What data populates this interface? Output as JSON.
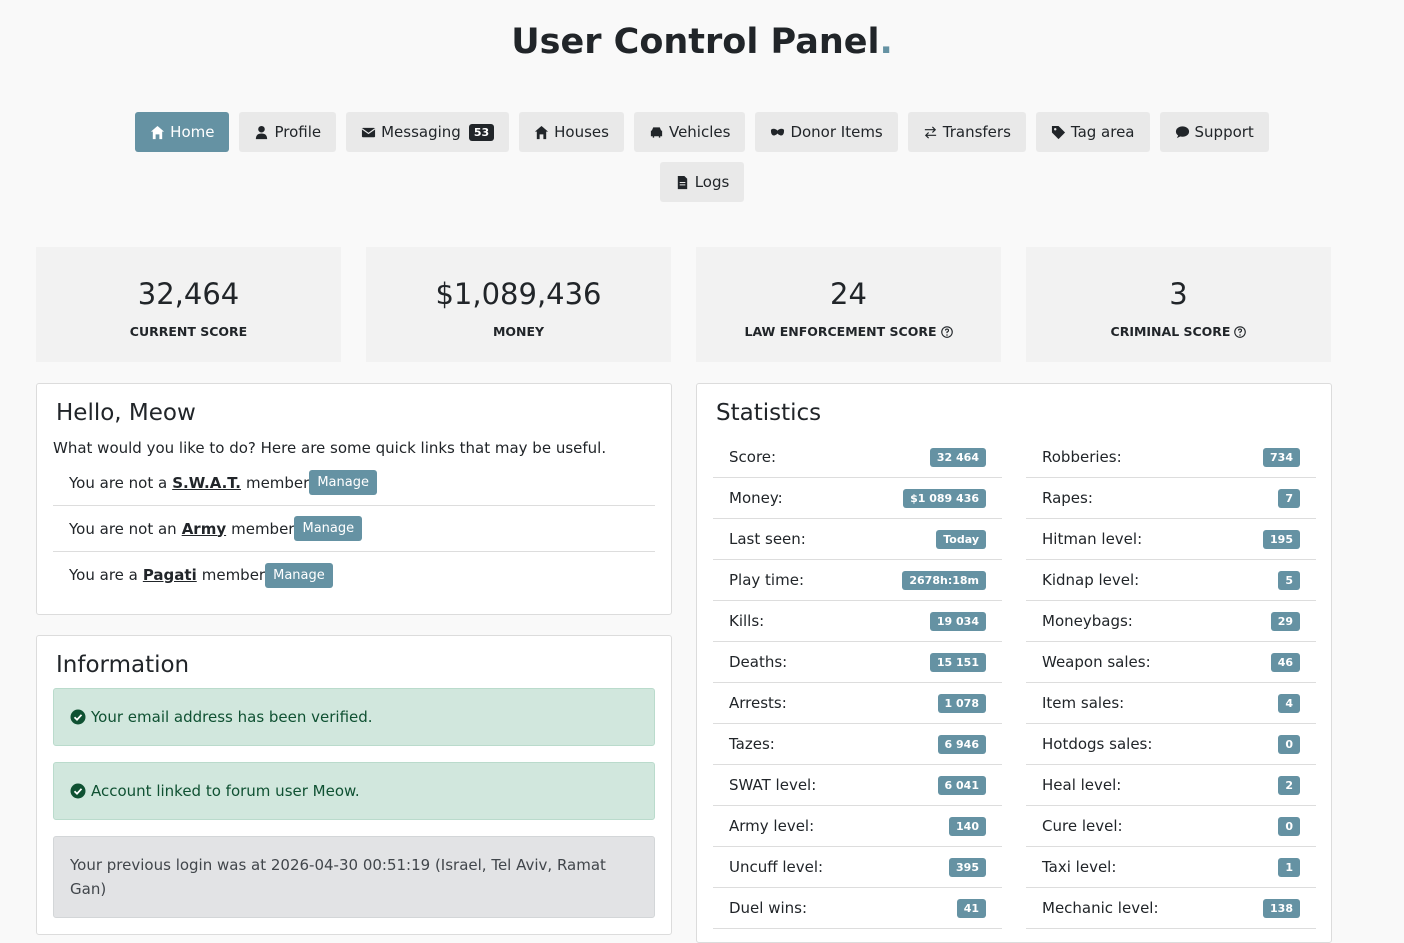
{
  "header": {
    "title": "User Control Panel",
    "dot": "."
  },
  "nav": [
    [
      {
        "icon": "home",
        "label": "Home",
        "active": true
      },
      {
        "icon": "user",
        "label": "Profile"
      },
      {
        "icon": "mail",
        "label": "Messaging",
        "badge": "53"
      },
      {
        "icon": "home",
        "label": "Houses"
      },
      {
        "icon": "car",
        "label": "Vehicles"
      },
      {
        "icon": "mask",
        "label": "Donor Items"
      },
      {
        "icon": "swap",
        "label": "Transfers"
      },
      {
        "icon": "tag",
        "label": "Tag area"
      },
      {
        "icon": "chat",
        "label": "Support"
      }
    ],
    [
      {
        "icon": "file",
        "label": "Logs"
      }
    ]
  ],
  "cards": [
    {
      "value": "32,464",
      "label": "CURRENT SCORE"
    },
    {
      "value": "$1,089,436",
      "label": "MONEY"
    },
    {
      "value": "24",
      "label": "LAW ENFORCEMENT SCORE",
      "help": true
    },
    {
      "value": "3",
      "label": "CRIMINAL SCORE",
      "help": true
    }
  ],
  "hello": {
    "title": "Hello, Meow",
    "intro": "What would you like to do? Here are some quick links that may be useful.",
    "rows": [
      {
        "prefix": "You are not a",
        "link": "S.W.A.T.",
        "suffix": "member",
        "button": "Manage"
      },
      {
        "prefix": "You are not an",
        "link": "Army",
        "suffix": "member",
        "button": "Manage"
      },
      {
        "prefix": "You are a",
        "link": "Pagati",
        "suffix": "member",
        "button": "Manage"
      }
    ]
  },
  "information": {
    "title": "Information",
    "alerts": [
      {
        "kind": "success",
        "text": "Your email address has been verified."
      },
      {
        "kind": "success",
        "text": "Account linked to forum user Meow."
      },
      {
        "kind": "secondary",
        "text": "Your previous login was at 2026-04-30 00:51:19 (Israel, Tel Aviv, Ramat Gan)"
      }
    ]
  },
  "statistics": {
    "title": "Statistics",
    "columns": [
      [
        {
          "label": "Score:",
          "value": "32 464"
        },
        {
          "label": "Money:",
          "value": "$1 089 436"
        },
        {
          "label": "Last seen:",
          "value": "Today"
        },
        {
          "label": "Play time:",
          "value": "2678h:18m"
        },
        {
          "label": "Kills:",
          "value": "19 034"
        },
        {
          "label": "Deaths:",
          "value": "15 151"
        },
        {
          "label": "Arrests:",
          "value": "1 078"
        },
        {
          "label": "Tazes:",
          "value": "6 946"
        },
        {
          "label": "SWAT level:",
          "value": "6 041"
        },
        {
          "label": "Army level:",
          "value": "140"
        },
        {
          "label": "Uncuff level:",
          "value": "395"
        },
        {
          "label": "Duel wins:",
          "value": "41"
        }
      ],
      [
        {
          "label": "Robberies:",
          "value": "734"
        },
        {
          "label": "Rapes:",
          "value": "7"
        },
        {
          "label": "Hitman level:",
          "value": "195"
        },
        {
          "label": "Kidnap level:",
          "value": "5"
        },
        {
          "label": "Moneybags:",
          "value": "29"
        },
        {
          "label": "Weapon sales:",
          "value": "46"
        },
        {
          "label": "Item sales:",
          "value": "4"
        },
        {
          "label": "Hotdogs sales:",
          "value": "0"
        },
        {
          "label": "Heal level:",
          "value": "2"
        },
        {
          "label": "Cure level:",
          "value": "0"
        },
        {
          "label": "Taxi level:",
          "value": "1"
        },
        {
          "label": "Mechanic level:",
          "value": "138"
        }
      ]
    ]
  }
}
